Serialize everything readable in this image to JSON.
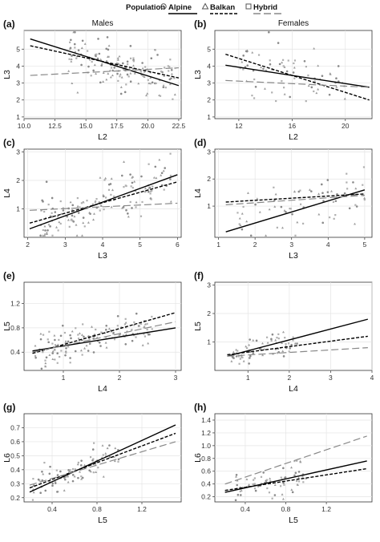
{
  "legend": {
    "title": "Population",
    "items": [
      {
        "name": "Alpine",
        "shape": "circle",
        "dash": "solid",
        "color": "#000000"
      },
      {
        "name": "Balkan",
        "shape": "triangle",
        "dash": "short-dash",
        "color": "#000000"
      },
      {
        "name": "Hybrid",
        "shape": "square",
        "dash": "long-dash",
        "color": "#888888"
      }
    ]
  },
  "columns": [
    "Males",
    "Females"
  ],
  "chart_data": [
    {
      "id": "a",
      "type": "scatter",
      "title": "Males",
      "xlabel": "L2",
      "ylabel": "L3",
      "xlim": [
        10,
        22.7
      ],
      "ylim": [
        0.9,
        6.1
      ],
      "xticks": [
        "10.0",
        "12.5",
        "15.0",
        "17.5",
        "20.0",
        "22.5"
      ],
      "xtick_values": [
        10,
        12.5,
        15,
        17.5,
        20,
        22.5
      ],
      "yticks": [
        "1",
        "2",
        "3",
        "4",
        "5"
      ],
      "ytick_values": [
        1,
        2,
        3,
        4,
        5
      ],
      "series": [
        {
          "name": "Alpine",
          "line": [
            [
              10.5,
              5.6
            ],
            [
              22.5,
              2.85
            ]
          ]
        },
        {
          "name": "Balkan",
          "line": [
            [
              10.5,
              5.2
            ],
            [
              22.5,
              3.3
            ]
          ]
        },
        {
          "name": "Hybrid",
          "line": [
            [
              10.5,
              3.45
            ],
            [
              22.5,
              3.9
            ]
          ]
        }
      ],
      "points": {
        "seed": 11,
        "n": 150,
        "x": [
          13.5,
          22.3
        ],
        "spread": 0.7
      }
    },
    {
      "id": "b",
      "type": "scatter",
      "title": "Females",
      "xlabel": "L2",
      "ylabel": "L3",
      "xlim": [
        10.2,
        22.0
      ],
      "ylim": [
        0.9,
        6.1
      ],
      "xticks": [
        "12",
        "16",
        "20"
      ],
      "xtick_values": [
        12,
        16,
        20
      ],
      "yticks": [
        "1",
        "2",
        "3",
        "4",
        "5"
      ],
      "ytick_values": [
        1,
        2,
        3,
        4,
        5
      ],
      "series": [
        {
          "name": "Alpine",
          "line": [
            [
              11,
              4.05
            ],
            [
              21.8,
              2.75
            ]
          ]
        },
        {
          "name": "Balkan",
          "line": [
            [
              11,
              4.7
            ],
            [
              21.8,
              2.0
            ]
          ]
        },
        {
          "name": "Hybrid",
          "line": [
            [
              11,
              3.15
            ],
            [
              21.8,
              2.75
            ]
          ]
        }
      ],
      "points": {
        "seed": 23,
        "n": 70,
        "x": [
          12,
          20
        ],
        "spread": 0.9
      }
    },
    {
      "id": "c",
      "type": "scatter",
      "title": "",
      "xlabel": "L3",
      "ylabel": "L4",
      "xlim": [
        1.9,
        6.1
      ],
      "ylim": [
        0.0,
        3.1
      ],
      "xticks": [
        "2",
        "3",
        "4",
        "5",
        "6"
      ],
      "xtick_values": [
        2,
        3,
        4,
        5,
        6
      ],
      "yticks": [
        "1",
        "2",
        "3"
      ],
      "ytick_values": [
        1,
        2,
        3
      ],
      "series": [
        {
          "name": "Alpine",
          "line": [
            [
              2.05,
              0.3
            ],
            [
              6.0,
              2.2
            ]
          ]
        },
        {
          "name": "Balkan",
          "line": [
            [
              2.05,
              0.5
            ],
            [
              6.0,
              1.95
            ]
          ]
        },
        {
          "name": "Hybrid",
          "line": [
            [
              2.05,
              0.95
            ],
            [
              6.0,
              1.2
            ]
          ]
        }
      ],
      "points": {
        "seed": 37,
        "n": 150,
        "x": [
          2.3,
          5.9
        ],
        "spread": 0.45
      }
    },
    {
      "id": "d",
      "type": "scatter",
      "title": "",
      "xlabel": "L3",
      "ylabel": "L4",
      "xlim": [
        0.9,
        5.2
      ],
      "ylim": [
        -0.15,
        3.1
      ],
      "xticks": [
        "1",
        "2",
        "3",
        "4",
        "5"
      ],
      "xtick_values": [
        1,
        2,
        3,
        4,
        5
      ],
      "yticks": [
        "1",
        "2",
        "3"
      ],
      "ytick_values": [
        1,
        2,
        3
      ],
      "series": [
        {
          "name": "Alpine",
          "line": [
            [
              1.2,
              0.05
            ],
            [
              5.0,
              1.6
            ]
          ]
        },
        {
          "name": "Balkan",
          "line": [
            [
              1.2,
              1.15
            ],
            [
              5.0,
              1.45
            ]
          ]
        },
        {
          "name": "Hybrid",
          "line": [
            [
              1.2,
              1.05
            ],
            [
              5.0,
              1.4
            ]
          ]
        }
      ],
      "points": {
        "seed": 51,
        "n": 70,
        "x": [
          1.5,
          5.0
        ],
        "spread": 0.45
      }
    },
    {
      "id": "e",
      "type": "scatter",
      "title": "",
      "xlabel": "L4",
      "ylabel": "L5",
      "xlim": [
        0.3,
        3.1
      ],
      "ylim": [
        0.1,
        1.55
      ],
      "xticks": [
        "1",
        "2",
        "3"
      ],
      "xtick_values": [
        1,
        2,
        3
      ],
      "yticks": [
        "0.4",
        "0.8",
        "1.2"
      ],
      "ytick_values": [
        0.4,
        0.8,
        1.2
      ],
      "series": [
        {
          "name": "Alpine",
          "line": [
            [
              0.45,
              0.42
            ],
            [
              3.0,
              0.8
            ]
          ]
        },
        {
          "name": "Balkan",
          "line": [
            [
              0.45,
              0.38
            ],
            [
              3.0,
              1.05
            ]
          ]
        },
        {
          "name": "Hybrid",
          "line": [
            [
              0.45,
              0.4
            ],
            [
              3.0,
              0.9
            ]
          ]
        }
      ],
      "points": {
        "seed": 67,
        "n": 140,
        "x": [
          0.5,
          2.6
        ],
        "spread": 0.12
      }
    },
    {
      "id": "f",
      "type": "scatter",
      "title": "",
      "xlabel": "L4",
      "ylabel": "L5",
      "xlim": [
        0.2,
        4.0
      ],
      "ylim": [
        0.0,
        3.1
      ],
      "xticks": [
        "1",
        "2",
        "3",
        "4"
      ],
      "xtick_values": [
        1,
        2,
        3,
        4
      ],
      "yticks": [
        "1",
        "2",
        "3"
      ],
      "ytick_values": [
        1,
        2,
        3
      ],
      "series": [
        {
          "name": "Alpine",
          "line": [
            [
              0.5,
              0.5
            ],
            [
              3.9,
              1.8
            ]
          ]
        },
        {
          "name": "Balkan",
          "line": [
            [
              0.5,
              0.55
            ],
            [
              3.9,
              1.2
            ]
          ]
        },
        {
          "name": "Hybrid",
          "line": [
            [
              0.5,
              0.5
            ],
            [
              3.9,
              0.8
            ]
          ]
        }
      ],
      "points": {
        "seed": 79,
        "n": 70,
        "x": [
          0.6,
          2.2
        ],
        "spread": 0.2
      }
    },
    {
      "id": "g",
      "type": "scatter",
      "title": "",
      "xlabel": "L5",
      "ylabel": "L6",
      "xlim": [
        0.15,
        1.55
      ],
      "ylim": [
        0.17,
        0.8
      ],
      "xticks": [
        "0.4",
        "0.8",
        "1.2"
      ],
      "xtick_values": [
        0.4,
        0.8,
        1.2
      ],
      "yticks": [
        "0.2",
        "0.3",
        "0.4",
        "0.5",
        "0.6",
        "0.7"
      ],
      "ytick_values": [
        0.2,
        0.3,
        0.4,
        0.5,
        0.6,
        0.7
      ],
      "series": [
        {
          "name": "Alpine",
          "line": [
            [
              0.2,
              0.24
            ],
            [
              1.5,
              0.72
            ]
          ]
        },
        {
          "name": "Balkan",
          "line": [
            [
              0.2,
              0.27
            ],
            [
              1.5,
              0.66
            ]
          ]
        },
        {
          "name": "Hybrid",
          "line": [
            [
              0.2,
              0.29
            ],
            [
              1.5,
              0.6
            ]
          ]
        }
      ],
      "points": {
        "seed": 83,
        "n": 90,
        "x": [
          0.22,
          1.0
        ],
        "spread": 0.05
      }
    },
    {
      "id": "h",
      "type": "scatter",
      "title": "",
      "xlabel": "L5",
      "ylabel": "L6",
      "xlim": [
        0.1,
        1.65
      ],
      "ylim": [
        0.12,
        1.5
      ],
      "xticks": [
        "0.4",
        "0.8",
        "1.2"
      ],
      "xtick_values": [
        0.4,
        0.8,
        1.2
      ],
      "yticks": [
        "0.2",
        "0.4",
        "0.6",
        "0.8",
        "1.0",
        "1.2",
        "1.4"
      ],
      "ytick_values": [
        0.2,
        0.4,
        0.6,
        0.8,
        1.0,
        1.2,
        1.4
      ],
      "series": [
        {
          "name": "Alpine",
          "line": [
            [
              0.2,
              0.27
            ],
            [
              1.6,
              0.76
            ]
          ]
        },
        {
          "name": "Balkan",
          "line": [
            [
              0.2,
              0.3
            ],
            [
              1.6,
              0.64
            ]
          ]
        },
        {
          "name": "Hybrid",
          "line": [
            [
              0.2,
              0.4
            ],
            [
              1.6,
              1.15
            ]
          ]
        }
      ],
      "points": {
        "seed": 97,
        "n": 70,
        "x": [
          0.3,
          1.0
        ],
        "spread": 0.12
      }
    }
  ]
}
